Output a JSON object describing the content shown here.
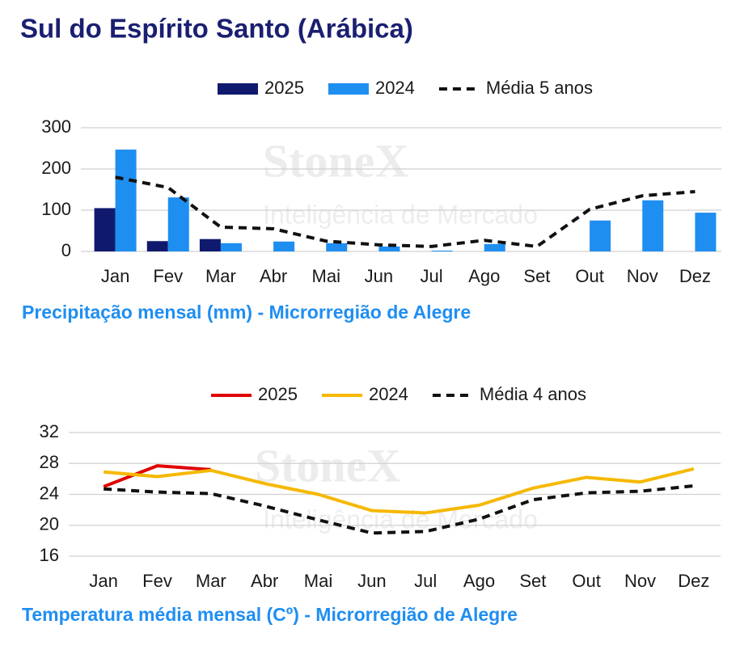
{
  "title": "Sul do Espírito Santo (Arábica)",
  "watermark": {
    "brand": "StoneX",
    "tagline": "Inteligência de Mercado"
  },
  "chart_data": [
    {
      "type": "bar",
      "title": "Precipitação mensal (mm) - Microrregião de Alegre",
      "categories": [
        "Jan",
        "Fev",
        "Mar",
        "Abr",
        "Mai",
        "Jun",
        "Jul",
        "Ago",
        "Set",
        "Out",
        "Nov",
        "Dez"
      ],
      "series": [
        {
          "name": "2025",
          "type": "bar",
          "color": "#0f1a6e",
          "values": [
            105,
            25,
            30,
            null,
            null,
            null,
            null,
            null,
            null,
            null,
            null,
            null
          ]
        },
        {
          "name": "2024",
          "type": "bar",
          "color": "#1f8ef1",
          "values": [
            247,
            131,
            20,
            24,
            20,
            12,
            2,
            18,
            null,
            75,
            124,
            94
          ]
        },
        {
          "name": "Média 5 anos",
          "type": "line",
          "dashed": true,
          "color": "#111111",
          "values": [
            180,
            155,
            59,
            55,
            25,
            16,
            12,
            27,
            12,
            102,
            135,
            145
          ]
        }
      ],
      "ylim": [
        0,
        300
      ],
      "yticks": [
        0,
        100,
        200,
        300
      ],
      "grid": true,
      "legend": "top"
    },
    {
      "type": "line",
      "title": "Temperatura média mensal (Cº) - Microrregião de Alegre",
      "categories": [
        "Jan",
        "Fev",
        "Mar",
        "Abr",
        "Mai",
        "Jun",
        "Jul",
        "Ago",
        "Set",
        "Out",
        "Nov",
        "Dez"
      ],
      "series": [
        {
          "name": "2025",
          "type": "line",
          "color": "#e00000",
          "values": [
            25.0,
            27.7,
            27.2,
            null,
            null,
            null,
            null,
            null,
            null,
            null,
            null,
            null
          ]
        },
        {
          "name": "2024",
          "type": "line",
          "color": "#f5b800",
          "values": [
            26.9,
            26.3,
            27.1,
            25.4,
            24.0,
            21.9,
            21.6,
            22.6,
            24.8,
            26.2,
            25.6,
            27.3
          ]
        },
        {
          "name": "Média 4 anos",
          "type": "line",
          "dashed": true,
          "color": "#111111",
          "values": [
            24.7,
            24.3,
            24.1,
            22.5,
            20.7,
            19.0,
            19.2,
            20.8,
            23.3,
            24.2,
            24.4,
            25.1
          ]
        }
      ],
      "ylim": [
        16,
        32
      ],
      "yticks": [
        16,
        20,
        24,
        28,
        32
      ],
      "grid": true,
      "legend": "top"
    }
  ]
}
